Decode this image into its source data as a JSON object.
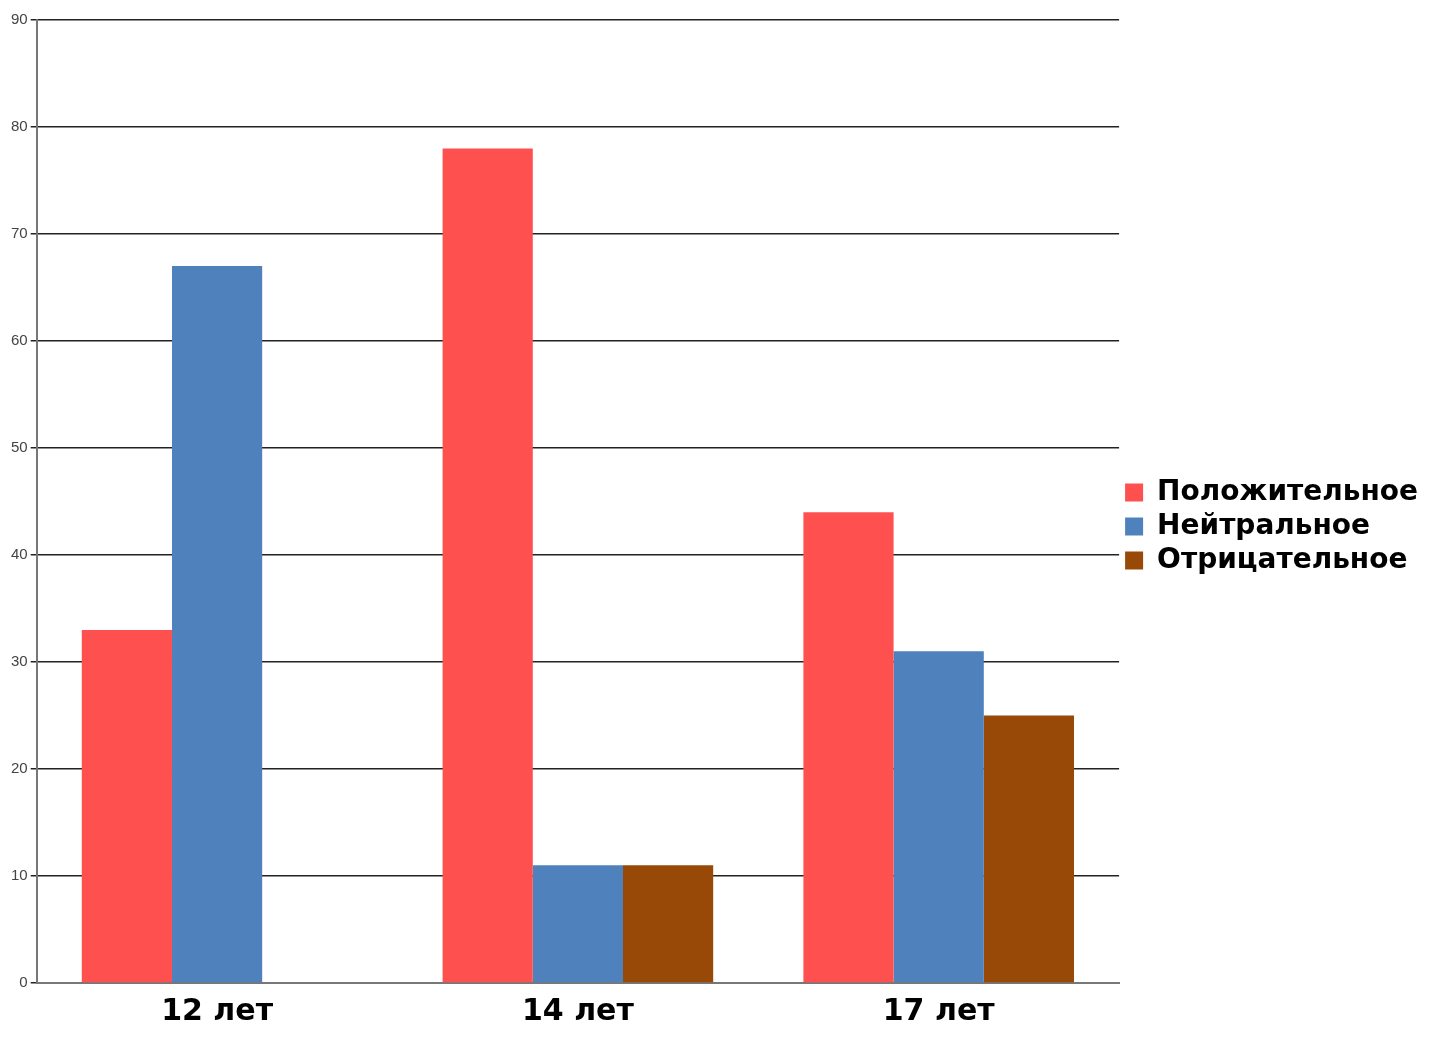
{
  "chart_data": {
    "type": "bar",
    "categories": [
      "12 лет",
      "14 лет",
      "17 лет"
    ],
    "series": [
      {
        "name": "Положительное",
        "color": "#ff5050",
        "values": [
          33,
          78,
          44
        ]
      },
      {
        "name": "Нейтральное",
        "color": "#4f81bd",
        "values": [
          67,
          11,
          31
        ]
      },
      {
        "name": "Отрицательное",
        "color": "#984807",
        "values": [
          0,
          11,
          25
        ]
      }
    ],
    "ylim": [
      0,
      90
    ],
    "yticks": [
      0,
      10,
      20,
      30,
      40,
      50,
      60,
      70,
      80,
      90
    ],
    "grid": "y",
    "legend": "right"
  }
}
